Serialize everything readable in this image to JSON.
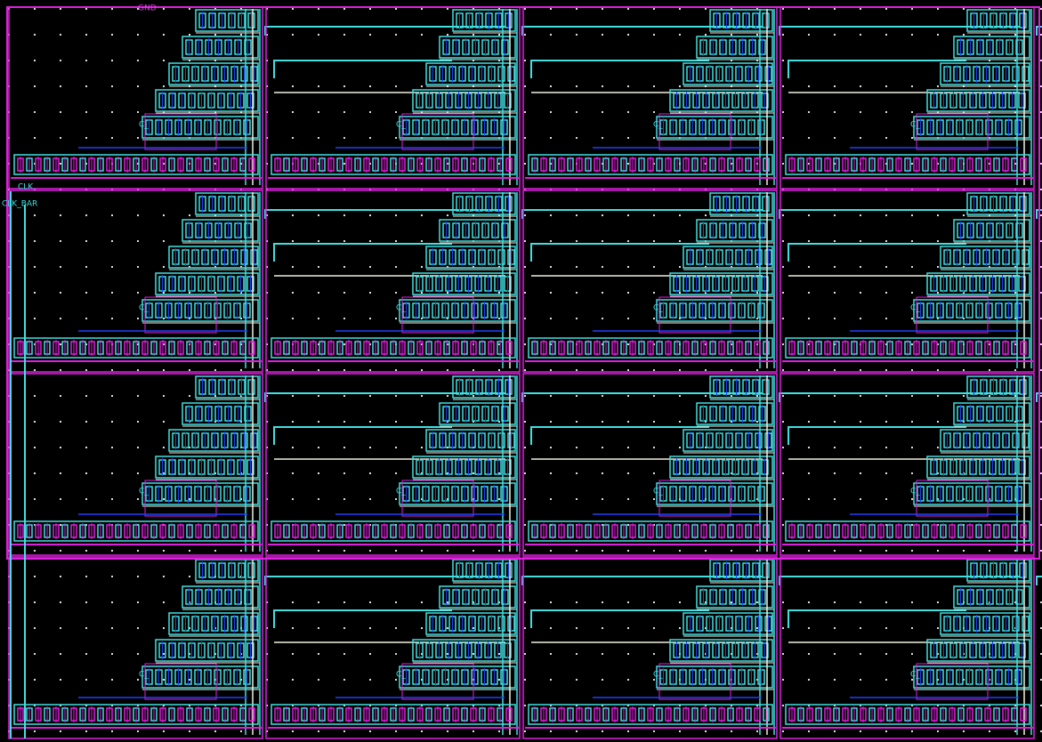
{
  "labels": {
    "top": "GND",
    "clk": "CLK",
    "clk_bar": "CLK_BAR"
  },
  "cells": [
    {
      "label": "C_"
    },
    {
      "label": "C_"
    },
    {
      "label": "C_"
    },
    {
      "label": "C_"
    },
    {
      "label": "C_"
    },
    {
      "label": "C_"
    },
    {
      "label": "C_"
    },
    {
      "label": "C_"
    },
    {
      "label": "C_"
    },
    {
      "label": "C_"
    },
    {
      "label": "C_"
    },
    {
      "label": "C_"
    },
    {
      "label": "C_"
    },
    {
      "label": "C_"
    },
    {
      "label": "C_"
    },
    {
      "label": "C_"
    }
  ]
}
